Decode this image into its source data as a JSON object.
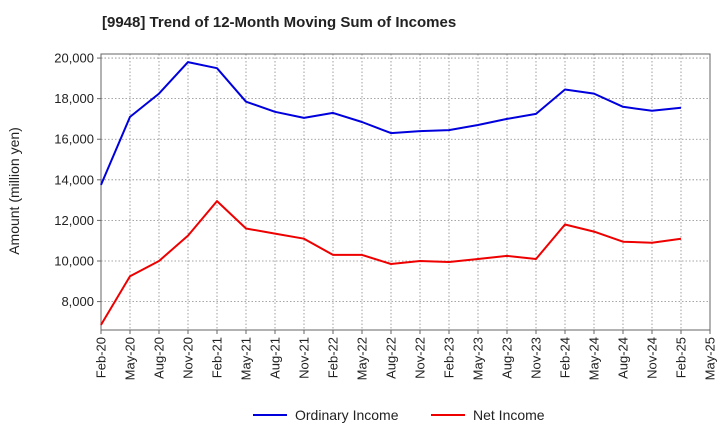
{
  "chart_data": {
    "type": "line",
    "title": "[9948]  Trend of 12-Month Moving Sum of Incomes",
    "xlabel": "",
    "ylabel": "Amount (million yen)",
    "categories": [
      "Feb-20",
      "May-20",
      "Aug-20",
      "Nov-20",
      "Feb-21",
      "May-21",
      "Aug-21",
      "Nov-21",
      "Feb-22",
      "May-22",
      "Aug-22",
      "Nov-22",
      "Feb-23",
      "May-23",
      "Aug-23",
      "Nov-23",
      "Feb-24",
      "May-24",
      "Aug-24",
      "Nov-24",
      "Feb-25",
      "May-25"
    ],
    "ylim": [
      6600,
      20200
    ],
    "yticks": [
      8000,
      10000,
      12000,
      14000,
      16000,
      18000,
      20000
    ],
    "ytick_labels": [
      "8,000",
      "10,000",
      "12,000",
      "14,000",
      "16,000",
      "18,000",
      "20,000"
    ],
    "grid": true,
    "legend_position": "bottom-center",
    "series": [
      {
        "name": "Ordinary Income",
        "color": "#0000dd",
        "values": [
          13750,
          17100,
          18250,
          19800,
          19500,
          17850,
          17350,
          17050,
          17300,
          16850,
          16300,
          16400,
          16450,
          16700,
          17000,
          17250,
          18450,
          18250,
          17600,
          17400,
          17550,
          null
        ]
      },
      {
        "name": "Net Income",
        "color": "#ee0000",
        "values": [
          6850,
          9250,
          10000,
          11250,
          12950,
          11600,
          11350,
          11100,
          10300,
          10300,
          9850,
          10000,
          9950,
          10100,
          10250,
          10100,
          11800,
          11450,
          10950,
          10900,
          11100,
          null
        ]
      }
    ]
  }
}
